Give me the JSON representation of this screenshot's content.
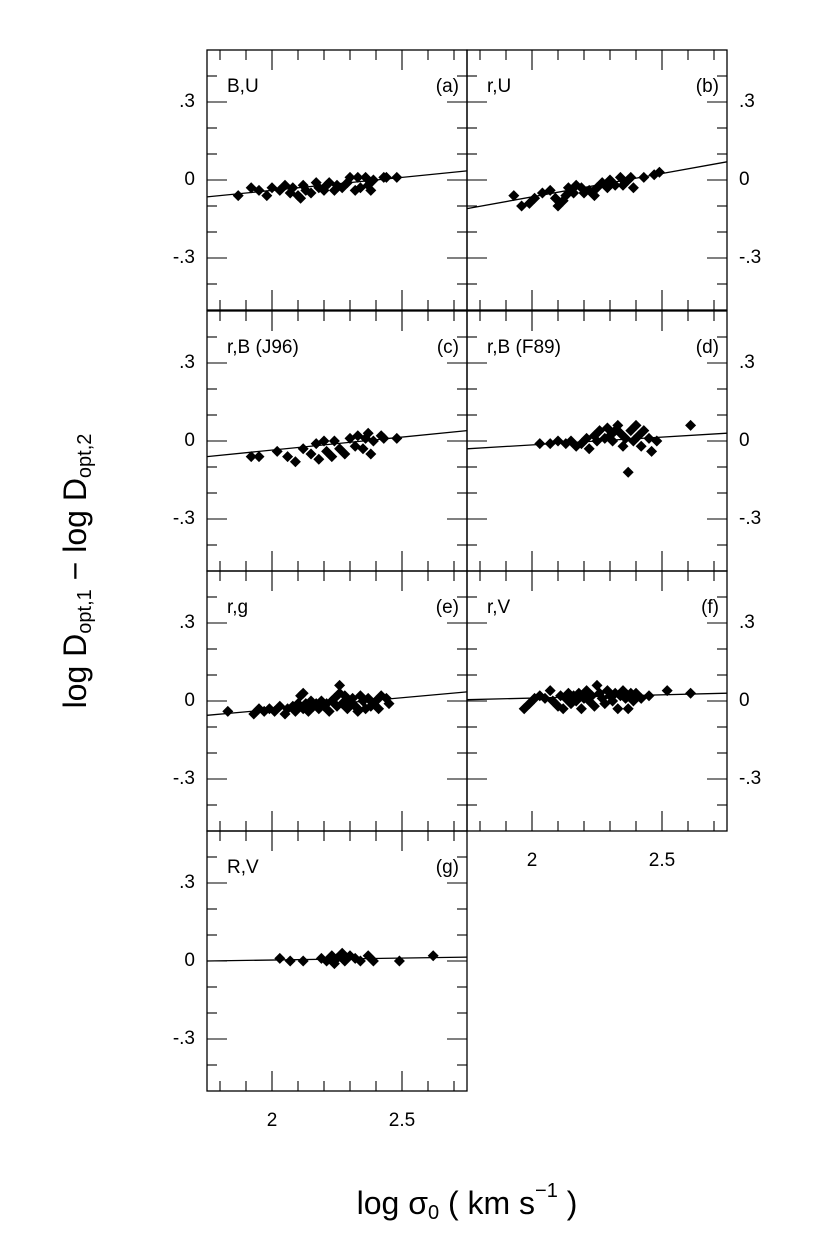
{
  "figure": {
    "xlabel_parts": [
      "log σ",
      "0",
      " ( km s",
      "−1",
      " )"
    ],
    "ylabel_parts": [
      "log D",
      "opt,1",
      " − log D",
      "opt,2"
    ]
  },
  "chart_data": [
    {
      "type": "scatter",
      "panel_label": "B,U",
      "tag": "(a)",
      "xlim": [
        1.75,
        2.75
      ],
      "ylim": [
        -0.5,
        0.5
      ],
      "xticks": [
        2,
        2.5
      ],
      "xminor": [
        1.8,
        1.9,
        2.1,
        2.2,
        2.3,
        2.4,
        2.6,
        2.7
      ],
      "yticks": [
        {
          "value": 0.3,
          "label": ".3"
        },
        0,
        {
          "value": -0.3,
          "label": "-.3"
        }
      ],
      "yminor": [
        0.4,
        0.2,
        0.1,
        -0.1,
        -0.2,
        -0.4
      ],
      "ytick_side": "left",
      "show_xtick_labels": false,
      "color": "#000000",
      "points": {
        "x": [
          1.87,
          1.92,
          1.95,
          1.98,
          2.0,
          2.03,
          2.05,
          2.07,
          2.08,
          2.1,
          2.11,
          2.12,
          2.13,
          2.15,
          2.17,
          2.18,
          2.2,
          2.21,
          2.22,
          2.24,
          2.25,
          2.27,
          2.29,
          2.3,
          2.32,
          2.33,
          2.34,
          2.36,
          2.37,
          2.38,
          2.39,
          2.43,
          2.44,
          2.48
        ],
        "y": [
          -0.06,
          -0.03,
          -0.04,
          -0.06,
          -0.03,
          -0.04,
          -0.02,
          -0.05,
          -0.03,
          -0.06,
          -0.07,
          -0.02,
          -0.04,
          -0.05,
          -0.01,
          -0.03,
          -0.04,
          -0.02,
          -0.01,
          -0.04,
          -0.02,
          -0.03,
          -0.01,
          0.01,
          -0.04,
          0.01,
          -0.03,
          0.01,
          -0.02,
          -0.04,
          0.0,
          0.01,
          0.01,
          0.01
        ]
      },
      "fit_line": {
        "x": [
          1.75,
          2.75
        ],
        "y": [
          -0.065,
          0.035
        ]
      }
    },
    {
      "type": "scatter",
      "panel_label": "r,U",
      "tag": "(b)",
      "xlim": [
        1.75,
        2.75
      ],
      "ylim": [
        -0.5,
        0.5
      ],
      "xticks": [
        2,
        2.5
      ],
      "xminor": [
        1.8,
        1.9,
        2.1,
        2.2,
        2.3,
        2.4,
        2.6,
        2.7
      ],
      "yticks": [
        {
          "value": 0.3,
          "label": ".3"
        },
        0,
        {
          "value": -0.3,
          "label": "-.3"
        }
      ],
      "yminor": [
        0.4,
        0.2,
        0.1,
        -0.1,
        -0.2,
        -0.4
      ],
      "ytick_side": "right",
      "show_xtick_labels": false,
      "color": "#000000",
      "points": {
        "x": [
          1.93,
          1.96,
          1.99,
          2.01,
          2.04,
          2.07,
          2.09,
          2.1,
          2.12,
          2.13,
          2.14,
          2.16,
          2.17,
          2.19,
          2.2,
          2.22,
          2.24,
          2.25,
          2.27,
          2.29,
          2.3,
          2.32,
          2.34,
          2.35,
          2.37,
          2.38,
          2.39,
          2.43,
          2.47,
          2.49
        ],
        "y": [
          -0.06,
          -0.1,
          -0.09,
          -0.07,
          -0.05,
          -0.04,
          -0.07,
          -0.1,
          -0.08,
          -0.06,
          -0.03,
          -0.05,
          -0.02,
          -0.03,
          -0.05,
          -0.04,
          -0.06,
          -0.03,
          -0.01,
          -0.03,
          0.0,
          -0.02,
          0.01,
          -0.02,
          0.0,
          0.01,
          -0.03,
          0.01,
          0.02,
          0.03
        ]
      },
      "fit_line": {
        "x": [
          1.75,
          2.75
        ],
        "y": [
          -0.11,
          0.07
        ]
      }
    },
    {
      "type": "scatter",
      "panel_label": "r,B (J96)",
      "tag": "(c)",
      "xlim": [
        1.75,
        2.75
      ],
      "ylim": [
        -0.5,
        0.5
      ],
      "xticks": [
        2,
        2.5
      ],
      "xminor": [
        1.8,
        1.9,
        2.1,
        2.2,
        2.3,
        2.4,
        2.6,
        2.7
      ],
      "yticks": [
        {
          "value": 0.3,
          "label": ".3"
        },
        0,
        {
          "value": -0.3,
          "label": "-.3"
        }
      ],
      "yminor": [
        0.4,
        0.2,
        0.1,
        -0.1,
        -0.2,
        -0.4
      ],
      "ytick_side": "left",
      "show_xtick_labels": false,
      "color": "#000000",
      "points": {
        "x": [
          1.92,
          1.95,
          2.02,
          2.06,
          2.09,
          2.12,
          2.15,
          2.17,
          2.18,
          2.2,
          2.21,
          2.23,
          2.24,
          2.26,
          2.28,
          2.3,
          2.32,
          2.33,
          2.35,
          2.36,
          2.37,
          2.39,
          2.42,
          2.43,
          2.48,
          2.38
        ],
        "y": [
          -0.06,
          -0.06,
          -0.04,
          -0.06,
          -0.08,
          -0.03,
          -0.05,
          -0.01,
          -0.07,
          0.0,
          -0.04,
          -0.06,
          0.0,
          -0.03,
          -0.05,
          0.01,
          -0.02,
          0.02,
          -0.03,
          0.01,
          0.03,
          0.0,
          0.02,
          0.01,
          0.01,
          -0.05
        ]
      },
      "fit_line": {
        "x": [
          1.75,
          2.75
        ],
        "y": [
          -0.06,
          0.04
        ]
      }
    },
    {
      "type": "scatter",
      "panel_label": "r,B (F89)",
      "tag": "(d)",
      "xlim": [
        1.75,
        2.75
      ],
      "ylim": [
        -0.5,
        0.5
      ],
      "xticks": [
        2,
        2.5
      ],
      "xminor": [
        1.8,
        1.9,
        2.1,
        2.2,
        2.3,
        2.4,
        2.6,
        2.7
      ],
      "yticks": [
        {
          "value": 0.3,
          "label": ".3"
        },
        0,
        {
          "value": -0.3,
          "label": "-.3"
        }
      ],
      "yminor": [
        0.4,
        0.2,
        0.1,
        -0.1,
        -0.2,
        -0.4
      ],
      "ytick_side": "right",
      "show_xtick_labels": false,
      "color": "#000000",
      "points": {
        "x": [
          2.03,
          2.07,
          2.1,
          2.13,
          2.15,
          2.17,
          2.19,
          2.21,
          2.22,
          2.24,
          2.25,
          2.26,
          2.28,
          2.29,
          2.3,
          2.31,
          2.32,
          2.33,
          2.34,
          2.35,
          2.36,
          2.37,
          2.38,
          2.39,
          2.4,
          2.41,
          2.42,
          2.43,
          2.45,
          2.46,
          2.48,
          2.61
        ],
        "y": [
          -0.01,
          -0.01,
          0.0,
          -0.01,
          0.0,
          -0.02,
          -0.01,
          0.01,
          -0.03,
          0.02,
          0.0,
          0.04,
          0.01,
          0.05,
          0.02,
          0.0,
          0.04,
          0.06,
          0.03,
          -0.02,
          0.01,
          -0.12,
          0.04,
          0.0,
          0.06,
          0.02,
          -0.02,
          0.04,
          0.01,
          -0.04,
          0.0,
          0.06
        ]
      },
      "fit_line": {
        "x": [
          1.75,
          2.75
        ],
        "y": [
          -0.03,
          0.03
        ]
      }
    },
    {
      "type": "scatter",
      "panel_label": "r,g",
      "tag": "(e)",
      "xlim": [
        1.75,
        2.75
      ],
      "ylim": [
        -0.5,
        0.5
      ],
      "xticks": [
        2,
        2.5
      ],
      "xminor": [
        1.8,
        1.9,
        2.1,
        2.2,
        2.3,
        2.4,
        2.6,
        2.7
      ],
      "yticks": [
        {
          "value": 0.3,
          "label": ".3"
        },
        0,
        {
          "value": -0.3,
          "label": "-.3"
        }
      ],
      "yminor": [
        0.4,
        0.2,
        0.1,
        -0.1,
        -0.2,
        -0.4
      ],
      "ytick_side": "left",
      "show_xtick_labels": false,
      "color": "#000000",
      "points": {
        "x": [
          1.83,
          1.93,
          1.95,
          1.97,
          1.99,
          2.01,
          2.03,
          2.05,
          2.06,
          2.08,
          2.09,
          2.1,
          2.11,
          2.12,
          2.13,
          2.14,
          2.15,
          2.16,
          2.17,
          2.18,
          2.19,
          2.2,
          2.21,
          2.22,
          2.23,
          2.24,
          2.25,
          2.26,
          2.27,
          2.28,
          2.29,
          2.3,
          2.31,
          2.32,
          2.33,
          2.34,
          2.35,
          2.36,
          2.37,
          2.38,
          2.4,
          2.41,
          2.42,
          2.44,
          2.45,
          2.12,
          2.26,
          2.33
        ],
        "y": [
          -0.04,
          -0.05,
          -0.03,
          -0.04,
          -0.03,
          -0.04,
          -0.02,
          -0.05,
          -0.03,
          -0.02,
          -0.04,
          -0.01,
          0.02,
          -0.03,
          -0.01,
          -0.04,
          0.0,
          -0.02,
          -0.01,
          -0.03,
          0.0,
          -0.02,
          -0.01,
          -0.04,
          0.0,
          0.01,
          -0.02,
          0.06,
          -0.01,
          0.02,
          -0.03,
          0.0,
          0.01,
          -0.02,
          -0.04,
          0.02,
          0.0,
          -0.03,
          0.01,
          -0.02,
          0.0,
          -0.03,
          0.02,
          0.01,
          -0.01,
          0.03,
          0.03,
          -0.03
        ]
      },
      "fit_line": {
        "x": [
          1.75,
          2.75
        ],
        "y": [
          -0.055,
          0.035
        ]
      }
    },
    {
      "type": "scatter",
      "panel_label": "r,V",
      "tag": "(f)",
      "xlim": [
        1.75,
        2.75
      ],
      "ylim": [
        -0.5,
        0.5
      ],
      "xticks": [
        2,
        2.5
      ],
      "xminor": [
        1.8,
        1.9,
        2.1,
        2.2,
        2.3,
        2.4,
        2.6,
        2.7
      ],
      "yticks": [
        {
          "value": 0.3,
          "label": ".3"
        },
        0,
        {
          "value": -0.3,
          "label": "-.3"
        }
      ],
      "yminor": [
        0.4,
        0.2,
        0.1,
        -0.1,
        -0.2,
        -0.4
      ],
      "ytick_side": "right",
      "show_xtick_labels": true,
      "color": "#000000",
      "points": {
        "x": [
          1.97,
          1.99,
          2.01,
          2.03,
          2.05,
          2.07,
          2.08,
          2.1,
          2.11,
          2.12,
          2.13,
          2.14,
          2.15,
          2.16,
          2.17,
          2.18,
          2.19,
          2.2,
          2.21,
          2.22,
          2.23,
          2.24,
          2.25,
          2.26,
          2.27,
          2.28,
          2.29,
          2.3,
          2.31,
          2.32,
          2.33,
          2.34,
          2.35,
          2.36,
          2.37,
          2.38,
          2.39,
          2.4,
          2.42,
          2.45,
          2.52,
          2.61
        ],
        "y": [
          -0.03,
          -0.01,
          0.01,
          0.02,
          0.01,
          0.04,
          0.0,
          -0.02,
          0.02,
          -0.03,
          0.01,
          0.03,
          -0.01,
          0.02,
          0.0,
          0.03,
          -0.03,
          0.01,
          0.04,
          0.0,
          0.02,
          -0.02,
          0.06,
          0.03,
          0.01,
          -0.01,
          0.04,
          0.02,
          0.0,
          0.03,
          -0.03,
          0.02,
          0.04,
          0.01,
          -0.03,
          0.03,
          0.0,
          0.03,
          0.01,
          0.02,
          0.04,
          0.03
        ]
      },
      "fit_line": {
        "x": [
          1.75,
          2.75
        ],
        "y": [
          0.005,
          0.03
        ]
      }
    },
    {
      "type": "scatter",
      "panel_label": "R,V",
      "tag": "(g)",
      "xlim": [
        1.75,
        2.75
      ],
      "ylim": [
        -0.5,
        0.5
      ],
      "xticks": [
        2,
        2.5
      ],
      "xminor": [
        1.8,
        1.9,
        2.1,
        2.2,
        2.3,
        2.4,
        2.6,
        2.7
      ],
      "yticks": [
        {
          "value": 0.3,
          "label": ".3"
        },
        0,
        {
          "value": -0.3,
          "label": "-.3"
        }
      ],
      "yminor": [
        0.4,
        0.2,
        0.1,
        -0.1,
        -0.2,
        -0.4
      ],
      "ytick_side": "left",
      "show_xtick_labels": true,
      "color": "#000000",
      "points": {
        "x": [
          2.03,
          2.07,
          2.12,
          2.19,
          2.21,
          2.23,
          2.24,
          2.25,
          2.27,
          2.28,
          2.3,
          2.32,
          2.34,
          2.37,
          2.39,
          2.49,
          2.62
        ],
        "y": [
          0.01,
          0.0,
          0.0,
          0.01,
          0.0,
          0.02,
          -0.01,
          0.01,
          0.03,
          0.0,
          0.02,
          0.01,
          0.0,
          0.02,
          0.0,
          0.0,
          0.02
        ]
      },
      "fit_line": {
        "x": [
          1.75,
          2.75
        ],
        "y": [
          0.0,
          0.015
        ]
      }
    }
  ]
}
